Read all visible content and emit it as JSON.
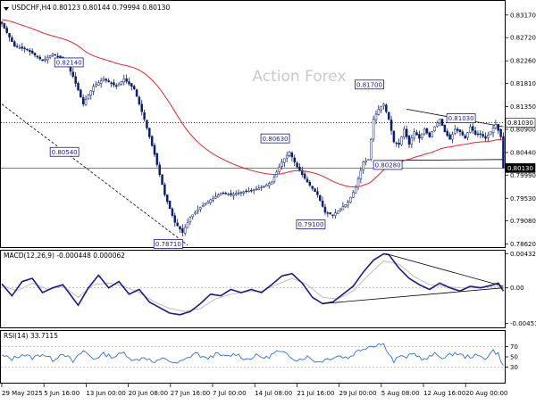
{
  "header": {
    "symbol_text": "USDCHF,H4",
    "ohlc_text": "0.80123 0.80144 0.79994 0.80130"
  },
  "watermark": "Action Forex",
  "macd_title": "MACD(12,26,9) -0.000448 0.000062",
  "rsi_title": "RSI(14) 33.7115",
  "colors": {
    "candle": "#0b1e6b",
    "ma": "#e8262a",
    "macd": "#1a1a8c",
    "signal": "#bdbdbd",
    "rsi": "#2e6fe0",
    "label_box": "#1a1a8c",
    "current_box": "#000000"
  },
  "chart_data": [
    {
      "type": "candlestick",
      "panel": "price",
      "y_ticks": [
        "0.83170",
        "0.82720",
        "0.82260",
        "0.81810",
        "0.81350",
        "0.80900",
        "0.80440",
        "0.79990",
        "0.79530",
        "0.79080",
        "0.78620"
      ],
      "ylim": [
        0.7856,
        0.8345
      ],
      "x_ticks": [
        "29 May 2025",
        "5 Jun 16:00",
        "13 Jun 00:00",
        "20 Jun 08:00",
        "27 Jun 16:00",
        "7 Jul 00:00",
        "14 Jul 08:00",
        "21 Jul 16:00",
        "29 Jul 00:00",
        "5 Aug 08:00",
        "12 Aug 16:00",
        "20 Aug 00:00"
      ],
      "close_anchors": [
        [
          0,
          0.83
        ],
        [
          5,
          0.8255
        ],
        [
          10,
          0.8248
        ],
        [
          16,
          0.8226
        ],
        [
          20,
          0.824
        ],
        [
          25,
          0.8225
        ],
        [
          28,
          0.8195
        ],
        [
          32,
          0.814
        ],
        [
          36,
          0.8175
        ],
        [
          40,
          0.819
        ],
        [
          45,
          0.8175
        ],
        [
          48,
          0.819
        ],
        [
          52,
          0.817
        ],
        [
          56,
          0.811
        ],
        [
          60,
          0.804
        ],
        [
          64,
          0.796
        ],
        [
          68,
          0.7905
        ],
        [
          71,
          0.7885
        ],
        [
          74,
          0.7915
        ],
        [
          78,
          0.7935
        ],
        [
          82,
          0.795
        ],
        [
          86,
          0.7963
        ],
        [
          90,
          0.796
        ],
        [
          94,
          0.7965
        ],
        [
          98,
          0.7968
        ],
        [
          102,
          0.7975
        ],
        [
          106,
          0.7985
        ],
        [
          110,
          0.8025
        ],
        [
          113,
          0.8045
        ],
        [
          116,
          0.8015
        ],
        [
          120,
          0.7985
        ],
        [
          124,
          0.796
        ],
        [
          127,
          0.7925
        ],
        [
          130,
          0.792
        ],
        [
          133,
          0.7932
        ],
        [
          136,
          0.7945
        ],
        [
          139,
          0.7975
        ],
        [
          142,
          0.8025
        ],
        [
          144,
          0.803
        ],
        [
          146,
          0.811
        ],
        [
          148,
          0.813
        ],
        [
          150,
          0.814
        ],
        [
          152,
          0.811
        ],
        [
          154,
          0.8065
        ],
        [
          156,
          0.806
        ],
        [
          158,
          0.809
        ],
        [
          160,
          0.806
        ],
        [
          162,
          0.8085
        ],
        [
          164,
          0.8072
        ],
        [
          166,
          0.809
        ],
        [
          168,
          0.8075
        ],
        [
          170,
          0.8095
        ],
        [
          172,
          0.811
        ],
        [
          174,
          0.8085
        ],
        [
          176,
          0.807
        ],
        [
          178,
          0.809
        ],
        [
          180,
          0.8085
        ],
        [
          182,
          0.8072
        ],
        [
          184,
          0.8095
        ],
        [
          186,
          0.808
        ],
        [
          188,
          0.808
        ],
        [
          190,
          0.8072
        ],
        [
          192,
          0.8085
        ],
        [
          194,
          0.81
        ],
        [
          196,
          0.8075
        ],
        [
          197,
          0.8013
        ]
      ],
      "moving_average_period": 55,
      "labeled_levels": [
        {
          "label": "0.82140",
          "value": 0.8214,
          "align": "right",
          "anchor": "top",
          "bar": 32
        },
        {
          "label": "0.80540",
          "value": 0.8054,
          "align": "left",
          "anchor": "bottom",
          "bar": 19
        },
        {
          "label": "0.78710",
          "value": 0.7871,
          "align": "right",
          "anchor": "bottom",
          "bar": 71
        },
        {
          "label": "0.80630",
          "value": 0.8063,
          "align": "right",
          "anchor": "top",
          "bar": 113
        },
        {
          "label": "0.79100",
          "value": 0.791,
          "align": "right",
          "anchor": "bottom",
          "bar": 127
        },
        {
          "label": "0.81700",
          "value": 0.817,
          "align": "right",
          "anchor": "top",
          "bar": 150
        },
        {
          "label": "0.80280",
          "value": 0.8028,
          "align": "left",
          "anchor": "bottom",
          "bar": 146
        },
        {
          "label": "0.81030",
          "value": 0.8103,
          "align": "right",
          "anchor": "top",
          "bar": 186
        }
      ],
      "horizontal_levels": [
        {
          "value": 0.8103,
          "style": "dotted",
          "label": "0.81030"
        },
        {
          "value": 0.8013,
          "style": "solid",
          "label": "0.80130",
          "current": true
        }
      ],
      "trend_lines": [
        {
          "from": [
            0,
            0.814
          ],
          "to": [
            73,
            0.786
          ],
          "style": "dashed"
        },
        {
          "from": [
            159,
            0.813
          ],
          "to": [
            197,
            0.8095
          ],
          "style": "solid"
        },
        {
          "from": [
            146,
            0.8028
          ],
          "to": [
            197,
            0.803
          ],
          "style": "solid"
        }
      ]
    },
    {
      "type": "line",
      "panel": "macd",
      "y_ticks": [
        "0.004325",
        "0.00",
        "-0.004511"
      ],
      "ylim": [
        -0.005,
        0.0047
      ],
      "series": [
        {
          "name": "MACD",
          "anchors": [
            [
              0,
              0.0005
            ],
            [
              4,
              -0.001
            ],
            [
              8,
              0.0008
            ],
            [
              12,
              0.0012
            ],
            [
              16,
              -0.0006
            ],
            [
              20,
              0.0
            ],
            [
              24,
              0.0004
            ],
            [
              30,
              -0.0022
            ],
            [
              34,
              0.0
            ],
            [
              38,
              0.0016
            ],
            [
              42,
              0.0
            ],
            [
              46,
              0.0008
            ],
            [
              50,
              -0.0008
            ],
            [
              54,
              -0.0002
            ],
            [
              58,
              -0.0018
            ],
            [
              62,
              -0.0025
            ],
            [
              66,
              -0.0032
            ],
            [
              70,
              -0.0034
            ],
            [
              74,
              -0.003
            ],
            [
              78,
              -0.002
            ],
            [
              82,
              -0.0008
            ],
            [
              86,
              -0.001
            ],
            [
              90,
              -0.0002
            ],
            [
              94,
              -0.0006
            ],
            [
              98,
              -0.0002
            ],
            [
              102,
              -0.0006
            ],
            [
              106,
              0.0004
            ],
            [
              110,
              0.0015
            ],
            [
              114,
              0.0018
            ],
            [
              118,
              0.0006
            ],
            [
              122,
              -0.0012
            ],
            [
              126,
              -0.002
            ],
            [
              130,
              -0.0018
            ],
            [
              134,
              -0.0008
            ],
            [
              138,
              0.0002
            ],
            [
              142,
              0.002
            ],
            [
              146,
              0.0035
            ],
            [
              150,
              0.0043
            ],
            [
              152,
              0.0042
            ],
            [
              156,
              0.0025
            ],
            [
              160,
              0.0012
            ],
            [
              164,
              0.0004
            ],
            [
              168,
              -0.0002
            ],
            [
              172,
              0.0006
            ],
            [
              176,
              0.0
            ],
            [
              180,
              -0.0004
            ],
            [
              184,
              0.0002
            ],
            [
              188,
              0.0
            ],
            [
              192,
              0.0003
            ],
            [
              195,
              0.0006
            ],
            [
              197,
              -0.0004
            ]
          ]
        },
        {
          "name": "Signal",
          "anchors": [
            [
              0,
              0.0003
            ],
            [
              6,
              -0.0004
            ],
            [
              12,
              0.0006
            ],
            [
              18,
              -0.0002
            ],
            [
              24,
              0.0002
            ],
            [
              30,
              -0.0012
            ],
            [
              36,
              0.0004
            ],
            [
              42,
              0.0006
            ],
            [
              48,
              0.0002
            ],
            [
              54,
              -0.0006
            ],
            [
              60,
              -0.0018
            ],
            [
              66,
              -0.0026
            ],
            [
              72,
              -0.003
            ],
            [
              78,
              -0.0026
            ],
            [
              84,
              -0.0014
            ],
            [
              90,
              -0.0008
            ],
            [
              96,
              -0.0005
            ],
            [
              102,
              -0.0004
            ],
            [
              108,
              0.0004
            ],
            [
              114,
              0.0012
            ],
            [
              120,
              0.0004
            ],
            [
              126,
              -0.0012
            ],
            [
              132,
              -0.0014
            ],
            [
              138,
              -0.0004
            ],
            [
              144,
              0.0016
            ],
            [
              150,
              0.0034
            ],
            [
              156,
              0.003
            ],
            [
              162,
              0.0014
            ],
            [
              168,
              0.0004
            ],
            [
              174,
              0.0002
            ],
            [
              180,
              0.0
            ],
            [
              186,
              0.0
            ],
            [
              192,
              0.0002
            ],
            [
              197,
              0.0001
            ]
          ]
        }
      ],
      "trend_lines": [
        {
          "from": [
            151,
            0.0043
          ],
          "to": [
            197,
            0.0002
          ]
        },
        {
          "from": [
            126,
            -0.002
          ],
          "to": [
            197,
            0.0
          ]
        }
      ]
    },
    {
      "type": "line",
      "panel": "rsi",
      "y_ticks": [
        "70",
        "50",
        "30"
      ],
      "ylim": [
        0,
        100
      ],
      "levels": [
        70,
        30
      ],
      "series": [
        {
          "name": "RSI",
          "anchors": [
            [
              0,
              52
            ],
            [
              4,
              46
            ],
            [
              8,
              55
            ],
            [
              12,
              48
            ],
            [
              16,
              56
            ],
            [
              20,
              44
            ],
            [
              24,
              58
            ],
            [
              28,
              40
            ],
            [
              32,
              62
            ],
            [
              36,
              46
            ],
            [
              40,
              55
            ],
            [
              44,
              50
            ],
            [
              48,
              58
            ],
            [
              52,
              42
            ],
            [
              56,
              50
            ],
            [
              60,
              38
            ],
            [
              64,
              48
            ],
            [
              68,
              36
            ],
            [
              72,
              44
            ],
            [
              76,
              58
            ],
            [
              80,
              46
            ],
            [
              84,
              55
            ],
            [
              88,
              50
            ],
            [
              92,
              56
            ],
            [
              96,
              45
            ],
            [
              100,
              52
            ],
            [
              104,
              48
            ],
            [
              108,
              60
            ],
            [
              112,
              55
            ],
            [
              116,
              44
            ],
            [
              120,
              50
            ],
            [
              124,
              40
            ],
            [
              128,
              46
            ],
            [
              132,
              52
            ],
            [
              136,
              48
            ],
            [
              140,
              62
            ],
            [
              144,
              70
            ],
            [
              146,
              72
            ],
            [
              148,
              75
            ],
            [
              150,
              74
            ],
            [
              152,
              58
            ],
            [
              154,
              40
            ],
            [
              156,
              52
            ],
            [
              158,
              48
            ],
            [
              162,
              56
            ],
            [
              166,
              44
            ],
            [
              170,
              55
            ],
            [
              174,
              48
            ],
            [
              178,
              58
            ],
            [
              182,
              50
            ],
            [
              186,
              52
            ],
            [
              190,
              48
            ],
            [
              193,
              62
            ],
            [
              195,
              55
            ],
            [
              197,
              33.7
            ]
          ]
        }
      ]
    }
  ]
}
